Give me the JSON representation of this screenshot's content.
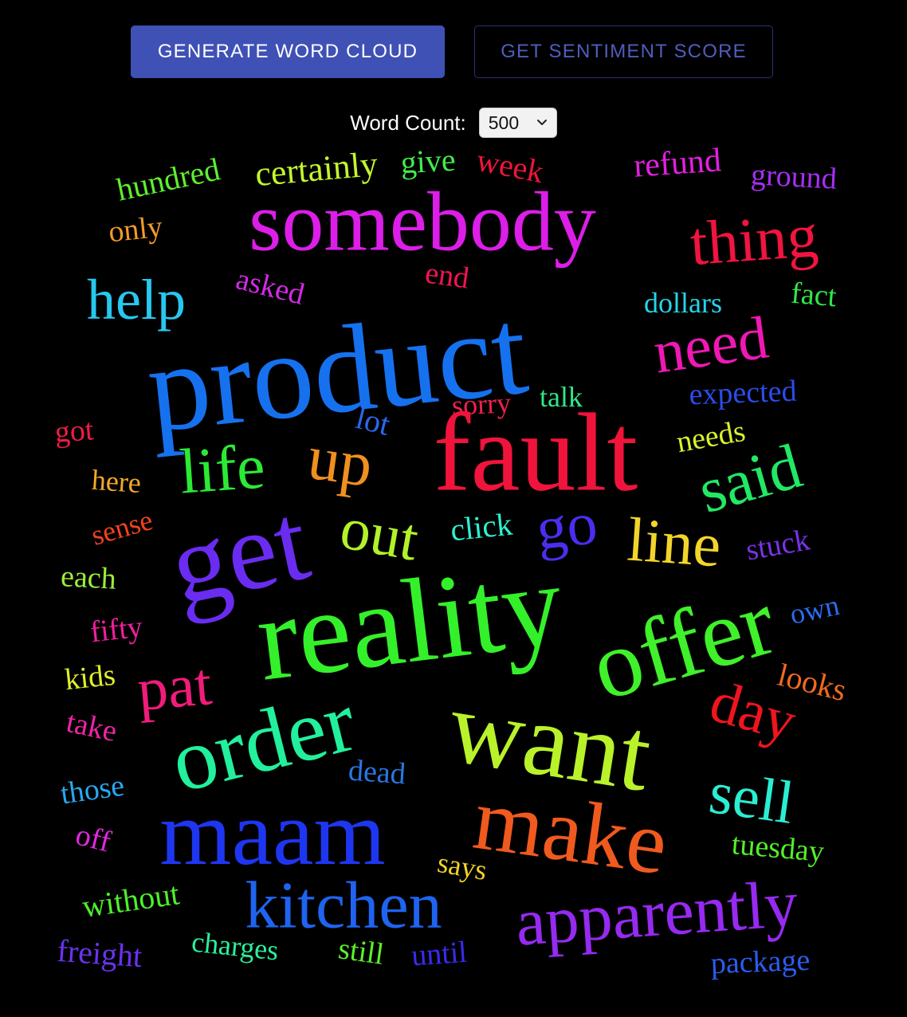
{
  "toolbar": {
    "generate_label": "GENERATE WORD CLOUD",
    "sentiment_label": "GET SENTIMENT SCORE"
  },
  "controls": {
    "word_count_label": "Word Count:",
    "word_count_value": "500"
  },
  "words": [
    {
      "text": "hundred",
      "color": "#5df02e"
    },
    {
      "text": "certainly",
      "color": "#c3f52f"
    },
    {
      "text": "give",
      "color": "#40ee4b"
    },
    {
      "text": "week",
      "color": "#f0143c"
    },
    {
      "text": "refund",
      "color": "#e41fe2"
    },
    {
      "text": "ground",
      "color": "#a72ef5"
    },
    {
      "text": "only",
      "color": "#f39a25"
    },
    {
      "text": "somebody",
      "color": "#dc1ee8"
    },
    {
      "text": "thing",
      "color": "#f0143f"
    },
    {
      "text": "help",
      "color": "#26c8ef"
    },
    {
      "text": "asked",
      "color": "#d32ae6"
    },
    {
      "text": "end",
      "color": "#f01453"
    },
    {
      "text": "dollars",
      "color": "#25d4e9"
    },
    {
      "text": "fact",
      "color": "#33e64a"
    },
    {
      "text": "product",
      "color": "#1671ef"
    },
    {
      "text": "need",
      "color": "#f018b4"
    },
    {
      "text": "expected",
      "color": "#2d4ce9"
    },
    {
      "text": "got",
      "color": "#ef1c45"
    },
    {
      "text": "sorry",
      "color": "#f0204c"
    },
    {
      "text": "talk",
      "color": "#2ee88a"
    },
    {
      "text": "lot",
      "color": "#2b67ee"
    },
    {
      "text": "fault",
      "color": "#f0143c"
    },
    {
      "text": "needs",
      "color": "#d9f22a"
    },
    {
      "text": "life",
      "color": "#2aea34"
    },
    {
      "text": "up",
      "color": "#f0901e"
    },
    {
      "text": "said",
      "color": "#22e864"
    },
    {
      "text": "here",
      "color": "#f2a92a"
    },
    {
      "text": "sense",
      "color": "#f0421e"
    },
    {
      "text": "get",
      "color": "#6a2cf0"
    },
    {
      "text": "out",
      "color": "#b2f22a"
    },
    {
      "text": "click",
      "color": "#2ef0cf"
    },
    {
      "text": "go",
      "color": "#4a2ef0"
    },
    {
      "text": "line",
      "color": "#f2d52a"
    },
    {
      "text": "stuck",
      "color": "#7a32ea"
    },
    {
      "text": "each",
      "color": "#9aee3a"
    },
    {
      "text": "reality",
      "color": "#34f02a"
    },
    {
      "text": "fifty",
      "color": "#f0209c"
    },
    {
      "text": "offer",
      "color": "#40f02a"
    },
    {
      "text": "own",
      "color": "#2a6cf0"
    },
    {
      "text": "kids",
      "color": "#e0f02a"
    },
    {
      "text": "pat",
      "color": "#f01c7a"
    },
    {
      "text": "looks",
      "color": "#f06a1e"
    },
    {
      "text": "day",
      "color": "#f0141e"
    },
    {
      "text": "take",
      "color": "#f024a6"
    },
    {
      "text": "order",
      "color": "#22f09c"
    },
    {
      "text": "want",
      "color": "#b9f22a"
    },
    {
      "text": "those",
      "color": "#28a8f0"
    },
    {
      "text": "dead",
      "color": "#2a76e0"
    },
    {
      "text": "sell",
      "color": "#2aeed2"
    },
    {
      "text": "off",
      "color": "#e228e0"
    },
    {
      "text": "maam",
      "color": "#1e36f0"
    },
    {
      "text": "make",
      "color": "#f05a1e"
    },
    {
      "text": "tuesday",
      "color": "#52f02a"
    },
    {
      "text": "says",
      "color": "#f2d22a"
    },
    {
      "text": "without",
      "color": "#4cf02a"
    },
    {
      "text": "kitchen",
      "color": "#1e64f0"
    },
    {
      "text": "apparently",
      "color": "#962af0"
    },
    {
      "text": "charges",
      "color": "#2af09c"
    },
    {
      "text": "still",
      "color": "#5cf02a"
    },
    {
      "text": "until",
      "color": "#3a2af0"
    },
    {
      "text": "freight",
      "color": "#6a32f0"
    },
    {
      "text": "package",
      "color": "#2a5cf0"
    }
  ]
}
